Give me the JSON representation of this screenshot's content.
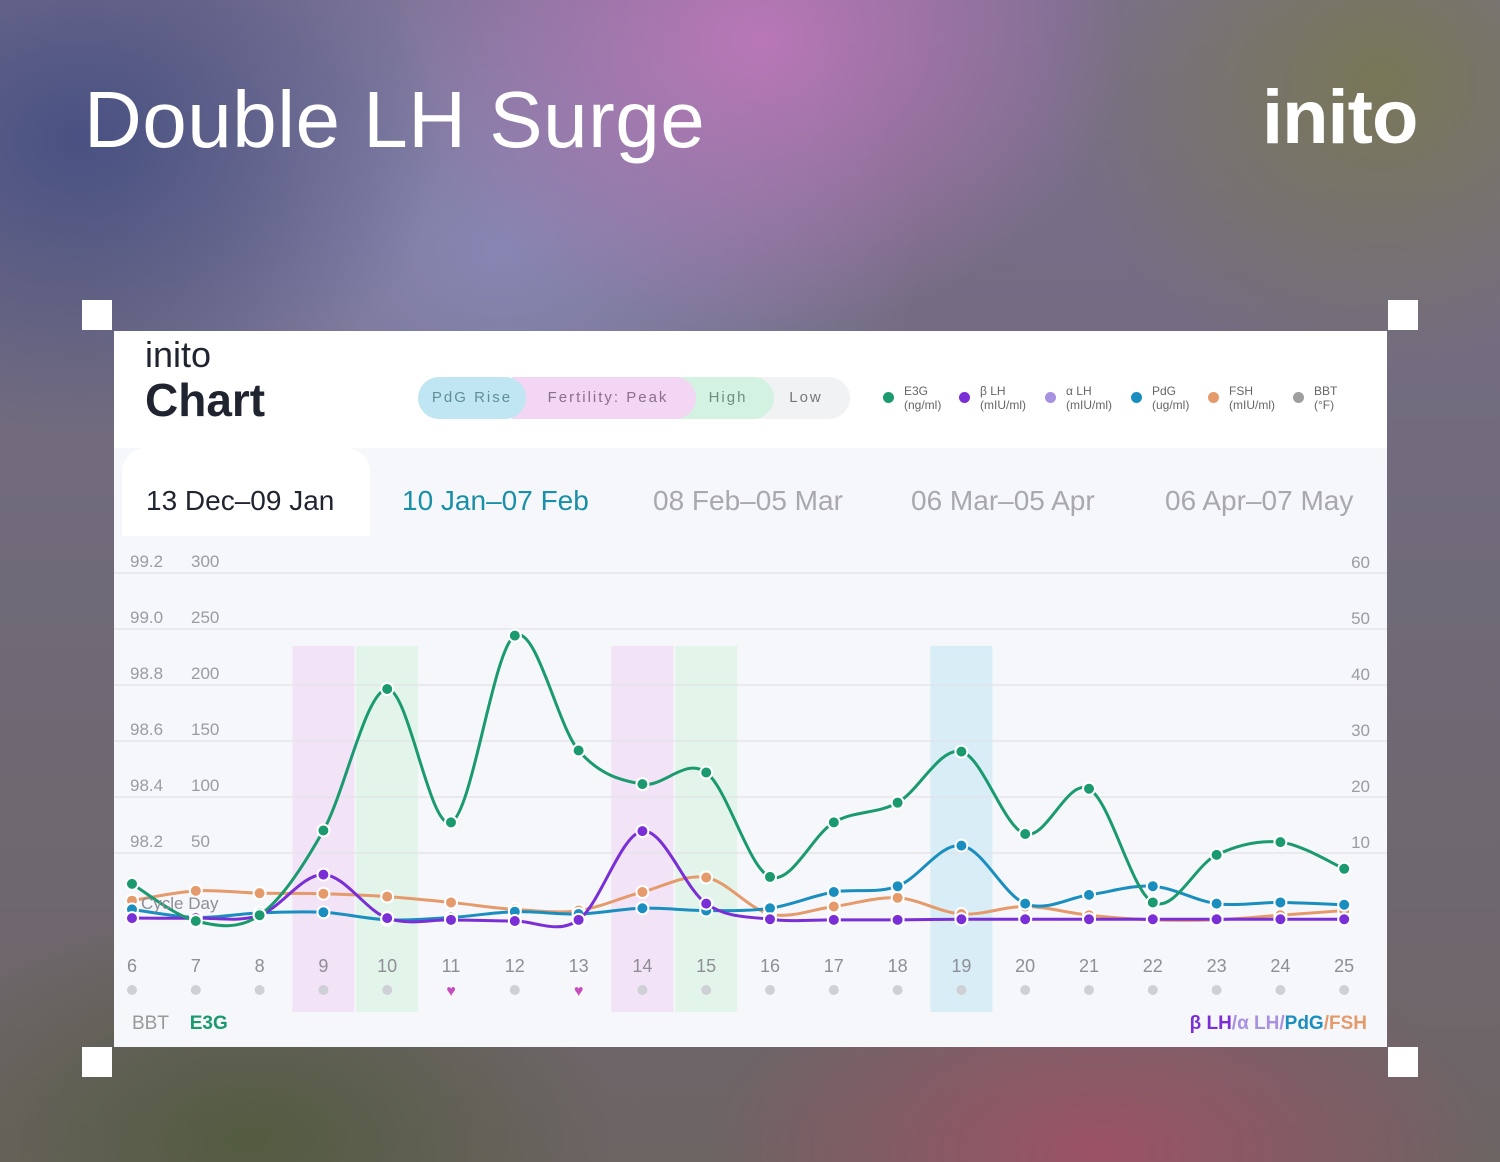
{
  "headline": "Double LH Surge",
  "brand": "inito",
  "card": {
    "brand": "inito",
    "title": "Chart",
    "pills": [
      {
        "label": "PdG Rise"
      },
      {
        "label": "Fertility: Peak"
      },
      {
        "label": "High"
      },
      {
        "label": "Low"
      }
    ],
    "legend": [
      {
        "name": "E3G",
        "unit": "(ng/ml)",
        "color": "#1a9a6e"
      },
      {
        "name": "β LH",
        "unit": "(mIU/ml)",
        "color": "#7a2fd6"
      },
      {
        "name": "α LH",
        "unit": "(mIU/ml)",
        "color": "#a891e0"
      },
      {
        "name": "PdG",
        "unit": "(ug/ml)",
        "color": "#1b8ec0"
      },
      {
        "name": "FSH",
        "unit": "(mIU/ml)",
        "color": "#e59a6c"
      },
      {
        "name": "BBT",
        "unit": "(°F)",
        "color": "#9e9e9e"
      }
    ],
    "tabs": [
      {
        "label": "13 Dec–09 Jan",
        "color": "#1f2430"
      },
      {
        "label": "10 Jan–07 Feb",
        "color": "#1a8fa8"
      },
      {
        "label": "08 Feb–05 Mar",
        "color": "#a8a8ad"
      },
      {
        "label": "06 Mar–05 Apr",
        "color": "#a8a8ad"
      },
      {
        "label": "06 Apr–07 May",
        "color": "#a8a8ad"
      }
    ],
    "bottom_left": {
      "bbt": "BBT",
      "e3g": "E3G"
    },
    "bottom_right": [
      {
        "text": "β LH",
        "color": "#7a2fd6"
      },
      {
        "text": "/",
        "color": "#a891e0"
      },
      {
        "text": "α LH",
        "color": "#a891e0"
      },
      {
        "text": "/",
        "color": "#a891e0"
      },
      {
        "text": "PdG",
        "color": "#1b8ec0"
      },
      {
        "text": "/",
        "color": "#e59a6c"
      },
      {
        "text": "FSH",
        "color": "#e59a6c"
      }
    ]
  },
  "chart_data": {
    "type": "line",
    "xlabel": "Cycle Day",
    "x": [
      6,
      7,
      8,
      9,
      10,
      11,
      12,
      13,
      14,
      15,
      16,
      17,
      18,
      19,
      20,
      21,
      22,
      23,
      24,
      25
    ],
    "bbt_ticks": [
      "99.2",
      "99.0",
      "98.8",
      "98.6",
      "98.4",
      "98.2"
    ],
    "e3g_ticks": [
      "300",
      "250",
      "200",
      "150",
      "100",
      "50"
    ],
    "right_ticks": [
      "60",
      "50",
      "40",
      "30",
      "20",
      "10"
    ],
    "left_ylim": [
      0,
      300
    ],
    "right_ylim": [
      0,
      60
    ],
    "grid": true,
    "day_markers": [
      {
        "day": 6,
        "marker": "dot"
      },
      {
        "day": 7,
        "marker": "dot"
      },
      {
        "day": 8,
        "marker": "dot"
      },
      {
        "day": 9,
        "marker": "dot"
      },
      {
        "day": 10,
        "marker": "dot"
      },
      {
        "day": 11,
        "marker": "heart"
      },
      {
        "day": 12,
        "marker": "dot"
      },
      {
        "day": 13,
        "marker": "heart"
      },
      {
        "day": 14,
        "marker": "dot"
      },
      {
        "day": 15,
        "marker": "dot"
      },
      {
        "day": 16,
        "marker": "dot"
      },
      {
        "day": 17,
        "marker": "dot"
      },
      {
        "day": 18,
        "marker": "dot"
      },
      {
        "day": 19,
        "marker": "dot"
      },
      {
        "day": 20,
        "marker": "dot"
      },
      {
        "day": 21,
        "marker": "dot"
      },
      {
        "day": 22,
        "marker": "dot"
      },
      {
        "day": 23,
        "marker": "dot"
      },
      {
        "day": 24,
        "marker": "dot"
      },
      {
        "day": 25,
        "marker": "dot"
      }
    ],
    "highlights": [
      {
        "day": 9,
        "category": "Fertility: Peak",
        "color": "#f0dcf5"
      },
      {
        "day": 10,
        "category": "High",
        "color": "#dcf4e6"
      },
      {
        "day": 14,
        "category": "Fertility: Peak",
        "color": "#f0dcf5"
      },
      {
        "day": 15,
        "category": "High",
        "color": "#dcf4e6"
      },
      {
        "day": 19,
        "category": "PdG Rise",
        "color": "#cdeaf4"
      }
    ],
    "series": [
      {
        "name": "E3G",
        "axis": "left",
        "color": "#1a9a6e",
        "values": [
          32,
          0,
          5,
          78,
          200,
          85,
          246,
          147,
          118,
          128,
          38,
          85,
          102,
          146,
          75,
          114,
          16,
          57,
          68,
          45
        ]
      },
      {
        "name": "PdG",
        "axis": "right",
        "color": "#1b8ec0",
        "values": [
          2.0,
          0.6,
          1.4,
          1.5,
          0.2,
          0.6,
          1.6,
          1.2,
          2.2,
          1.8,
          2.2,
          5.0,
          6.0,
          13.0,
          3.0,
          4.5,
          6.0,
          3.0,
          3.2,
          2.8
        ]
      },
      {
        "name": "β LH",
        "axis": "right",
        "color": "#7a2fd6",
        "values": [
          0.5,
          0.5,
          1.0,
          8.0,
          0.5,
          0.2,
          0.0,
          0.2,
          15.5,
          3.0,
          0.3,
          0.2,
          0.2,
          0.3,
          0.3,
          0.3,
          0.3,
          0.3,
          0.3,
          0.3
        ]
      },
      {
        "name": "FSH",
        "axis": "right",
        "color": "#e59a6c",
        "values": [
          3.5,
          5.2,
          4.8,
          4.7,
          4.2,
          3.2,
          2.0,
          1.8,
          5.0,
          7.5,
          1.2,
          2.5,
          4.0,
          1.2,
          2.5,
          1.0,
          0.2,
          0.2,
          1.0,
          1.8
        ]
      }
    ]
  }
}
